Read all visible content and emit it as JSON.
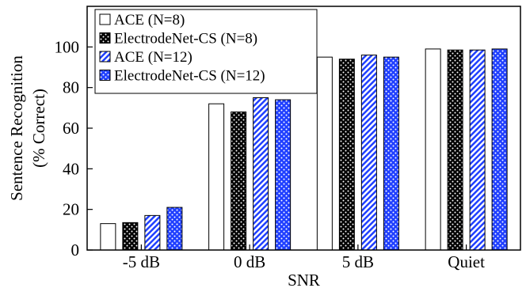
{
  "chart_data": {
    "type": "bar",
    "xlabel": "SNR",
    "ylabel_lines": [
      "Sentence Recognition",
      "(% Correct)"
    ],
    "categories": [
      "-5 dB",
      "0 dB",
      "5 dB",
      "Quiet"
    ],
    "ylim": [
      0,
      120
    ],
    "yticks": [
      0,
      20,
      40,
      60,
      80,
      100
    ],
    "grid": false,
    "legend_position": "top-left",
    "series": [
      {
        "name": "ACE (N=8)",
        "values": [
          13,
          72,
          95,
          99
        ],
        "pattern": "solid-white"
      },
      {
        "name": "ElectrodeNet-CS (N=8)",
        "values": [
          13.5,
          68,
          94,
          98.5
        ],
        "pattern": "black-white-dots"
      },
      {
        "name": "ACE (N=12)",
        "values": [
          17,
          75,
          96,
          98.5
        ],
        "pattern": "blue-diagonal-hatch"
      },
      {
        "name": "ElectrodeNet-CS (N=12)",
        "values": [
          21,
          74,
          95,
          99
        ],
        "pattern": "blue-white-dots"
      }
    ],
    "colors": {
      "axis": "#000000",
      "blue": "#1f3fff",
      "black": "#000000",
      "white": "#ffffff"
    }
  }
}
